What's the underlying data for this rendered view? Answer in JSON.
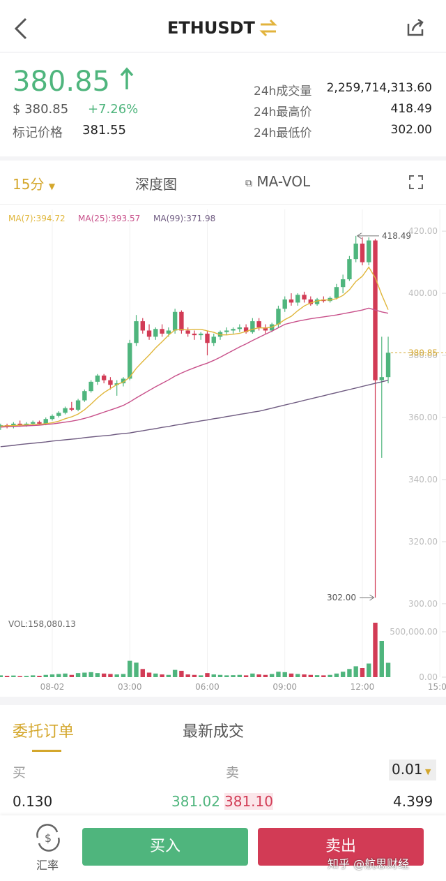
{
  "header": {
    "title": "ETHUSDT"
  },
  "ticker": {
    "price": "380.85",
    "usd": "$ 380.85",
    "change": "+7.26%",
    "mark_label": "标记价格",
    "mark_price": "381.55",
    "stats": [
      {
        "label": "24h成交量",
        "value": "2,259,714,313.60"
      },
      {
        "label": "24h最高价",
        "value": "418.49"
      },
      {
        "label": "24h最低价",
        "value": "302.00"
      }
    ]
  },
  "tabs": [
    "15分",
    "深度图",
    "MA-VOL"
  ],
  "chart_data": {
    "type": "candlestick",
    "categories": [
      null,
      null,
      null,
      null,
      null,
      null,
      null,
      null,
      "08-02",
      null,
      null,
      null,
      null,
      null,
      null,
      null,
      null,
      null,
      null,
      null,
      "03:00",
      null,
      null,
      null,
      null,
      null,
      null,
      null,
      null,
      null,
      null,
      null,
      "06:00",
      null,
      null,
      null,
      null,
      null,
      null,
      null,
      null,
      null,
      null,
      null,
      "09:00",
      null,
      null,
      null,
      null,
      null,
      null,
      null,
      null,
      null,
      null,
      null,
      "12:00",
      null,
      null,
      null,
      null,
      null,
      null,
      null,
      null,
      null,
      null,
      null,
      "15:00"
    ],
    "open": [
      357,
      357.5,
      357,
      358,
      357.5,
      358,
      358.5,
      358,
      359.5,
      360.5,
      361.5,
      363,
      362.5,
      365.5,
      368.5,
      371.5,
      373.5,
      372,
      370.5,
      371,
      372.5,
      384,
      391,
      388,
      386,
      388.5,
      387,
      388,
      394,
      388,
      387,
      386.5,
      387,
      384,
      386,
      387.5,
      388,
      388.5,
      389,
      387.5,
      391,
      389,
      388,
      390,
      395,
      398,
      397,
      399.5,
      398,
      396.5,
      398,
      397.5,
      398.5,
      402,
      404.5,
      411,
      416,
      410,
      417,
      372,
      373,
      null,
      null,
      null,
      null,
      null,
      null,
      null,
      null
    ],
    "high": [
      358,
      358,
      358.5,
      359,
      358.5,
      359,
      359,
      360,
      361,
      362,
      363.5,
      365,
      366,
      369,
      372,
      374,
      374,
      373,
      372,
      373,
      385,
      393,
      392,
      390,
      389,
      390,
      389,
      395,
      394.5,
      389,
      388,
      387.5,
      388,
      387,
      388,
      389,
      389,
      390,
      390,
      392,
      392,
      390,
      390.5,
      396,
      399,
      400,
      400,
      400.5,
      399,
      398.5,
      399,
      399,
      403,
      406,
      412,
      418.49,
      418,
      418,
      417.5,
      386,
      386,
      null,
      null,
      null,
      null,
      null,
      null,
      null,
      null
    ],
    "low": [
      356,
      356.5,
      356.5,
      357,
      357,
      357.5,
      357.5,
      357.5,
      359,
      360,
      361,
      362,
      362,
      365,
      368,
      370.5,
      371,
      369,
      367,
      370,
      372,
      383,
      387,
      385,
      385,
      386,
      386,
      387,
      387,
      386,
      385,
      385,
      380,
      383,
      385,
      386.5,
      387,
      387.5,
      387,
      387,
      388,
      387,
      387.5,
      389,
      394,
      396,
      396,
      397,
      396,
      396,
      397,
      397,
      398,
      400,
      404,
      410,
      409,
      409,
      302,
      347,
      371,
      null,
      null,
      null,
      null,
      null,
      null,
      null,
      null
    ],
    "close": [
      357.5,
      357,
      358,
      357.5,
      358,
      358.5,
      358,
      359.5,
      360.5,
      361.5,
      363,
      362.5,
      365.5,
      368.5,
      371.5,
      373.5,
      372,
      370.5,
      371,
      372.5,
      384,
      391,
      388,
      386,
      388.5,
      387,
      388,
      394,
      388,
      387,
      386.5,
      387,
      384,
      386,
      387.5,
      388,
      388.5,
      389,
      387.5,
      391,
      389,
      388,
      390,
      395,
      398,
      397,
      399.5,
      398,
      396.5,
      398,
      397.5,
      398.5,
      402,
      404.5,
      411,
      416,
      410,
      417,
      372,
      373,
      380.85,
      null,
      null,
      null,
      null,
      null,
      null,
      null,
      null
    ],
    "volume": [
      20000,
      15000,
      18000,
      12000,
      14000,
      20000,
      15000,
      25000,
      30000,
      35000,
      40000,
      25000,
      45000,
      50000,
      55000,
      45000,
      40000,
      35000,
      30000,
      35000,
      180000,
      160000,
      90000,
      50000,
      40000,
      30000,
      25000,
      80000,
      70000,
      30000,
      25000,
      20000,
      45000,
      30000,
      25000,
      20000,
      22000,
      25000,
      20000,
      40000,
      30000,
      25000,
      35000,
      60000,
      55000,
      40000,
      35000,
      30000,
      25000,
      22000,
      20000,
      25000,
      40000,
      60000,
      90000,
      120000,
      100000,
      150000,
      600000,
      400000,
      158080.13,
      null,
      null,
      null,
      null,
      null,
      null,
      null,
      null
    ],
    "ma_series": [
      {
        "name": "MA(7):394.72",
        "color": "#e0b63a",
        "values": [
          357.2,
          357.3,
          357.4,
          357.5,
          357.6,
          357.7,
          357.8,
          358,
          358.3,
          358.8,
          359.6,
          360.2,
          361.1,
          362.5,
          364.3,
          366.3,
          368,
          369.3,
          370.6,
          371.4,
          373,
          375.8,
          378,
          380.1,
          382.4,
          384.4,
          386.5,
          388.2,
          388.3,
          388.2,
          388.4,
          388.4,
          387.9,
          387.4,
          386.6,
          386.6,
          386.8,
          387.1,
          387.7,
          388.4,
          388.9,
          388.8,
          389.1,
          390.1,
          391.5,
          392.6,
          394.4,
          395.9,
          396.9,
          397.5,
          397.9,
          397.8,
          398.3,
          399.3,
          401.1,
          403.8,
          405.5,
          408.4,
          405,
          399.5,
          394.72,
          null,
          null,
          null,
          null,
          null,
          null,
          null,
          null
        ]
      },
      {
        "name": "MA(25):393.57",
        "color": "#c8508a",
        "values": [
          356.9,
          357,
          357.1,
          357.2,
          357.3,
          357.4,
          357.5,
          357.7,
          357.9,
          358.2,
          358.5,
          358.8,
          359.2,
          359.7,
          360.3,
          361,
          361.7,
          362.4,
          363.1,
          363.9,
          365,
          366.3,
          367.5,
          368.7,
          369.9,
          371,
          372.1,
          373.3,
          374.3,
          375.2,
          376,
          376.8,
          377.5,
          378.4,
          379.4,
          380.5,
          381.6,
          382.7,
          383.7,
          384.8,
          385.8,
          386.8,
          387.8,
          388.9,
          390,
          390.5,
          391,
          391.4,
          391.8,
          392.1,
          392.4,
          392.7,
          393,
          393.4,
          393.8,
          394.2,
          394.6,
          395.2,
          394.6,
          394,
          393.57,
          null,
          null,
          null,
          null,
          null,
          null,
          null,
          null
        ]
      },
      {
        "name": "MA(99):371.98",
        "color": "#6e5a80",
        "values": [
          350.6,
          350.8,
          351,
          351.3,
          351.5,
          351.7,
          351.9,
          352.1,
          352.4,
          352.6,
          352.8,
          353,
          353.2,
          353.5,
          353.7,
          353.9,
          354.1,
          354.3,
          354.6,
          354.8,
          355,
          355.4,
          355.7,
          356.1,
          356.4,
          356.8,
          357.1,
          357.5,
          357.8,
          358.2,
          358.5,
          358.9,
          359.2,
          359.6,
          359.9,
          360.3,
          360.6,
          361,
          361.3,
          361.7,
          362,
          362.5,
          363,
          363.5,
          364,
          364.5,
          365,
          365.5,
          366,
          366.5,
          367,
          367.5,
          368,
          368.5,
          369,
          369.5,
          370,
          370.5,
          371,
          371.5,
          371.98,
          null,
          null,
          null,
          null,
          null,
          null,
          null,
          null
        ]
      }
    ],
    "up_color": "#4fb57d",
    "down_color": "#d23b55",
    "ylim": [
      296.6,
      427
    ],
    "yticks": [
      {
        "value": 300,
        "label": "300.00"
      },
      {
        "value": 320,
        "label": "320.00"
      },
      {
        "value": 340,
        "label": "340.00"
      },
      {
        "value": 360,
        "label": "360.00"
      },
      {
        "value": 380,
        "label": "380.00"
      },
      {
        "value": 400,
        "label": "400.00"
      },
      {
        "value": 420,
        "label": "420.00"
      }
    ],
    "volume_ylim": [
      0,
      650000
    ],
    "volume_yticks": [
      {
        "value": 0,
        "label": "0.00"
      },
      {
        "value": 500000,
        "label": "500,000.00"
      }
    ],
    "volume_label": "VOL:158,080.13",
    "high_marker": {
      "value": 418.49,
      "label": "418.49"
    },
    "low_marker": {
      "value": 302,
      "label": "302.00"
    },
    "last_price": {
      "value": 380.85,
      "label": "380.85"
    }
  },
  "orders": {
    "tabs": [
      "委托订单",
      "最新成交"
    ],
    "buy": "买",
    "sell": "卖",
    "precision": "0.01",
    "row": [
      "0.130",
      "381.02",
      "381.10",
      "4.399"
    ]
  },
  "footer": {
    "rate": "汇率",
    "buy": "买入",
    "sell": "卖出",
    "watermark": "知乎 @航思财经"
  }
}
